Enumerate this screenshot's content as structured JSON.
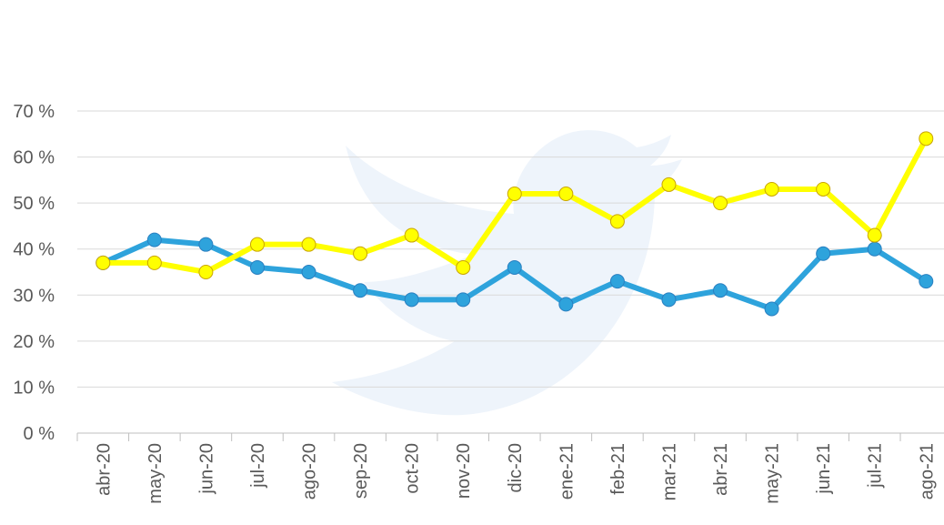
{
  "chart_data": {
    "type": "line",
    "categories": [
      "abr-20",
      "may-20",
      "jun-20",
      "jul-20",
      "ago-20",
      "sep-20",
      "oct-20",
      "nov-20",
      "dic-20",
      "ene-21",
      "feb-21",
      "mar-21",
      "abr-21",
      "may-21",
      "jun-21",
      "jul-21",
      "ago-21"
    ],
    "series": [
      {
        "color": "#2ea3dc",
        "values": [
          37,
          42,
          41,
          36,
          35,
          31,
          29,
          29,
          36,
          28,
          33,
          29,
          31,
          27,
          39,
          40,
          33
        ]
      },
      {
        "color": "#ffff00",
        "values": [
          37,
          37,
          35,
          41,
          41,
          39,
          43,
          36,
          52,
          52,
          46,
          54,
          50,
          53,
          53,
          43,
          64
        ]
      }
    ],
    "ylim": [
      0,
      70
    ],
    "yticks": [
      {
        "value": 0,
        "label": "0 %"
      },
      {
        "value": 10,
        "label": "10 %"
      },
      {
        "value": 20,
        "label": "20 %"
      },
      {
        "value": 30,
        "label": "30 %"
      },
      {
        "value": 40,
        "label": "40 %"
      },
      {
        "value": 50,
        "label": "50 %"
      },
      {
        "value": 60,
        "label": "60 %"
      },
      {
        "value": 70,
        "label": "70 %"
      }
    ],
    "grid": true
  }
}
